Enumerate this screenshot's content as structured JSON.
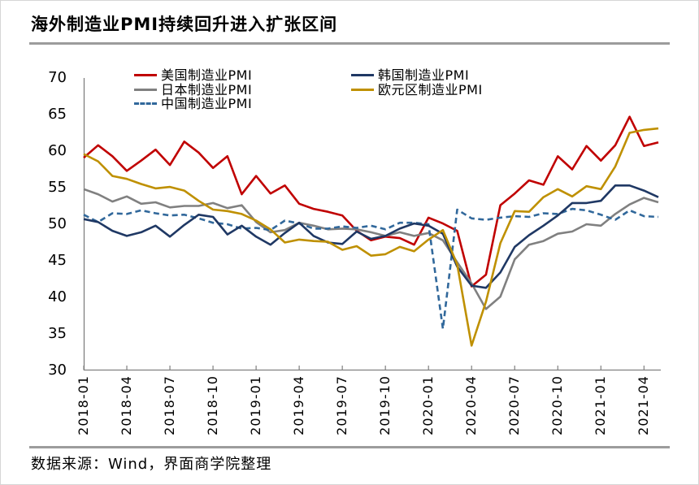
{
  "page": {
    "title": "海外制造业PMI持续回升进入扩张区间",
    "source_note": "数据来源：Wind，界面商学院整理"
  },
  "chart_data": {
    "type": "line",
    "title": "海外制造业PMI持续回升进入扩张区间",
    "xlabel": "",
    "ylabel": "",
    "ylim": [
      30,
      70
    ],
    "y_ticks": [
      70,
      65,
      60,
      55,
      50,
      45,
      40,
      35,
      30
    ],
    "grid": false,
    "legend_position": "top",
    "legend_columns": [
      [
        0,
        1,
        2
      ],
      [
        3,
        4
      ]
    ],
    "x_tick_every_months": 3,
    "x": [
      "2018-01",
      "2018-02",
      "2018-03",
      "2018-04",
      "2018-05",
      "2018-06",
      "2018-07",
      "2018-08",
      "2018-09",
      "2018-10",
      "2018-11",
      "2018-12",
      "2019-01",
      "2019-02",
      "2019-03",
      "2019-04",
      "2019-05",
      "2019-06",
      "2019-07",
      "2019-08",
      "2019-09",
      "2019-10",
      "2019-11",
      "2019-12",
      "2020-01",
      "2020-02",
      "2020-03",
      "2020-04",
      "2020-05",
      "2020-06",
      "2020-07",
      "2020-08",
      "2020-09",
      "2020-10",
      "2020-11",
      "2020-12",
      "2021-01",
      "2021-02",
      "2021-03",
      "2021-04",
      "2021-05"
    ],
    "series": [
      {
        "key": "us",
        "name": "美国制造业PMI",
        "color": "#C00000",
        "style": "solid",
        "values": [
          59.1,
          60.8,
          59.3,
          57.3,
          58.7,
          60.2,
          58.1,
          61.3,
          59.8,
          57.7,
          59.3,
          54.1,
          56.6,
          54.2,
          55.3,
          52.8,
          52.1,
          51.7,
          51.2,
          49.1,
          47.8,
          48.3,
          48.1,
          47.2,
          50.9,
          50.1,
          49.1,
          41.5,
          43.1,
          52.6,
          54.2,
          56.0,
          55.4,
          59.3,
          57.5,
          60.7,
          58.7,
          60.8,
          64.7,
          60.7,
          61.2
        ]
      },
      {
        "key": "japan",
        "name": "日本制造业PMI",
        "color": "#808080",
        "style": "solid",
        "values": [
          54.8,
          54.1,
          53.1,
          53.8,
          52.8,
          53.0,
          52.3,
          52.5,
          52.5,
          52.9,
          52.2,
          52.6,
          50.3,
          48.9,
          49.2,
          50.2,
          49.8,
          49.3,
          49.4,
          49.3,
          48.9,
          48.4,
          48.9,
          48.4,
          48.8,
          47.8,
          44.8,
          41.9,
          38.4,
          40.1,
          45.2,
          47.2,
          47.7,
          48.7,
          49.0,
          50.0,
          49.8,
          51.4,
          52.7,
          53.6,
          53.0
        ]
      },
      {
        "key": "china",
        "name": "中国制造业PMI",
        "color": "#31689B",
        "style": "dashed",
        "values": [
          51.3,
          50.3,
          51.5,
          51.4,
          51.9,
          51.5,
          51.2,
          51.3,
          50.8,
          50.2,
          50.0,
          49.4,
          49.5,
          49.2,
          50.5,
          50.1,
          49.4,
          49.4,
          49.7,
          49.5,
          49.8,
          49.3,
          50.2,
          50.2,
          50.0,
          35.7,
          52.0,
          50.8,
          50.6,
          50.9,
          51.1,
          51.0,
          51.5,
          51.4,
          52.1,
          51.9,
          51.3,
          50.6,
          51.9,
          51.1,
          51.0
        ]
      },
      {
        "key": "korea",
        "name": "韩国制造业PMI",
        "color": "#1F3864",
        "style": "solid",
        "values": [
          50.7,
          50.3,
          49.1,
          48.4,
          48.9,
          49.8,
          48.3,
          49.9,
          51.3,
          51.0,
          48.6,
          49.8,
          48.3,
          47.2,
          48.8,
          50.2,
          48.4,
          47.5,
          47.3,
          49.0,
          48.0,
          48.4,
          49.4,
          50.1,
          49.8,
          48.7,
          44.2,
          41.6,
          41.3,
          43.4,
          46.9,
          48.5,
          49.8,
          51.2,
          52.9,
          52.9,
          53.2,
          55.3,
          55.3,
          54.6,
          53.7
        ]
      },
      {
        "key": "eurozone",
        "name": "欧元区制造业PMI",
        "color": "#BF9000",
        "style": "solid",
        "values": [
          59.6,
          58.6,
          56.6,
          56.2,
          55.5,
          54.9,
          55.1,
          54.6,
          53.2,
          52.0,
          51.8,
          51.4,
          50.5,
          49.3,
          47.5,
          47.9,
          47.7,
          47.6,
          46.5,
          47.0,
          45.7,
          45.9,
          46.9,
          46.3,
          47.9,
          49.2,
          44.5,
          33.4,
          39.4,
          47.4,
          51.8,
          51.7,
          53.7,
          54.8,
          53.8,
          55.2,
          54.8,
          57.9,
          62.5,
          62.9,
          63.1
        ]
      }
    ],
    "axis_color": "#808080",
    "rule_color": "#9c9c9c"
  }
}
